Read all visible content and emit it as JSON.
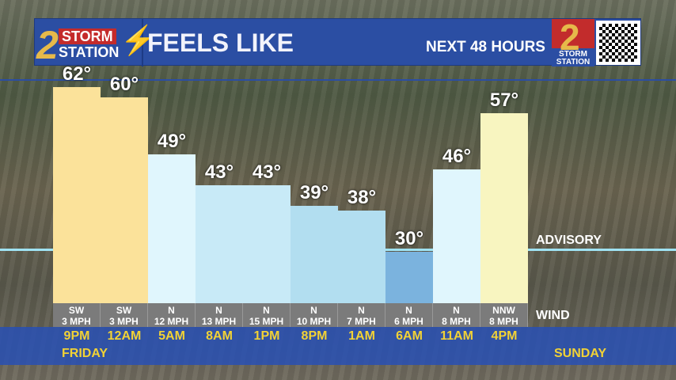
{
  "header": {
    "logo_number": "2",
    "logo_storm": "STORM",
    "logo_station": "STATION",
    "title": "FEELS LIKE",
    "subtitle": "NEXT 48 HOURS",
    "brand_number": "2",
    "brand_text": "STORM STATION"
  },
  "advisory_label": "ADVISORY",
  "wind_label": "WIND",
  "days": {
    "start": "FRIDAY",
    "end": "SUNDAY"
  },
  "colors": {
    "header": "#2b4ea3",
    "time_text": "#f2d235",
    "advisory_line": "#9fe3f3"
  },
  "chart_data": {
    "type": "bar",
    "ylabel": "",
    "categories": [
      "9PM",
      "12AM",
      "5AM",
      "8AM",
      "1PM",
      "8PM",
      "1AM",
      "6AM",
      "11AM",
      "4PM"
    ],
    "values": [
      62,
      60,
      49,
      43,
      43,
      39,
      38,
      30,
      46,
      57
    ],
    "labels": [
      "62°",
      "60°",
      "49°",
      "43°",
      "43°",
      "39°",
      "38°",
      "30°",
      "46°",
      "57°"
    ],
    "wind_dir": [
      "SW",
      "SW",
      "N",
      "N",
      "N",
      "N",
      "N",
      "N",
      "N",
      "NNW"
    ],
    "wind_speed": [
      "3 MPH",
      "3 MPH",
      "12 MPH",
      "13 MPH",
      "15 MPH",
      "10 MPH",
      "7 MPH",
      "6 MPH",
      "8 MPH",
      "8 MPH"
    ],
    "bar_colors": [
      "#fbe29a",
      "#fbe29a",
      "#e0f6fd",
      "#c8eaf7",
      "#c8eaf7",
      "#b2def0",
      "#b2def0",
      "#7bb3de",
      "#e0f6fd",
      "#f8f5c0"
    ]
  }
}
